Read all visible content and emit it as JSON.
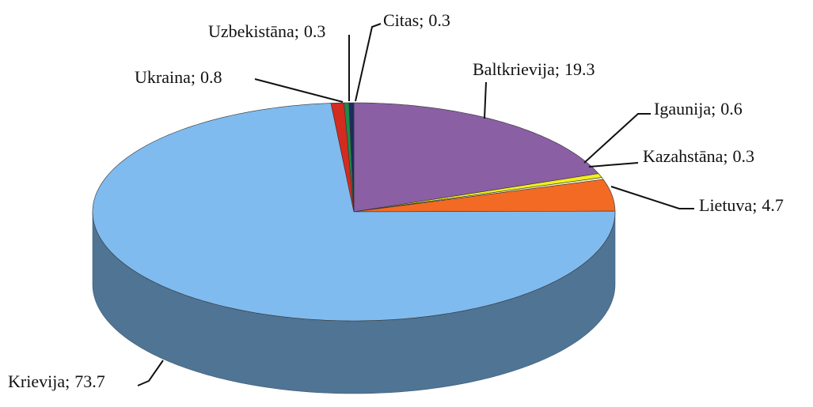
{
  "chart_data": {
    "type": "pie",
    "categories": [
      "Baltkrievija",
      "Igaunija",
      "Kazahstāna",
      "Lietuva",
      "Krievija",
      "Ukraina",
      "Uzbekistāna",
      "Citas"
    ],
    "values": [
      19.3,
      0.6,
      0.3,
      4.7,
      73.7,
      0.8,
      0.3,
      0.3
    ],
    "colors": [
      "#8b5fa3",
      "#f2ee1c",
      "#f4f1c8",
      "#f26a23",
      "#80bbef",
      "#d42a1f",
      "#1f8a4c",
      "#1b2d5e"
    ],
    "label_separator": ";",
    "three_d": true
  }
}
